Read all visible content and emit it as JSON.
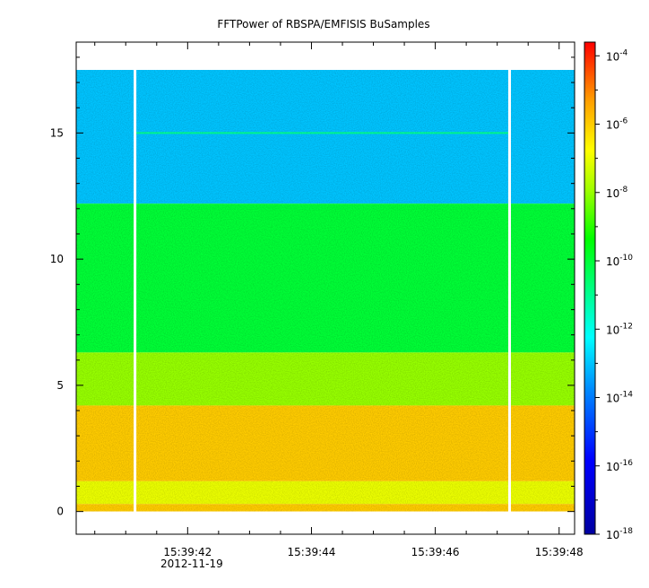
{
  "chart_data": {
    "type": "heatmap",
    "title": "FFTPower of RBSPA/EMFISIS  BuSamples",
    "xlabel": "",
    "ylabel": "",
    "x_tick_labels": [
      "15:39:42",
      "15:39:44",
      "15:39:46",
      "15:39:48"
    ],
    "x_date_label": "2012-11-19",
    "x_ticks_seconds": [
      42,
      44,
      46,
      48
    ],
    "xlim_seconds": [
      40.2,
      48.25
    ],
    "y_ticks": [
      0,
      5,
      10,
      15
    ],
    "y_tick_labels": [
      "0",
      "5",
      "10",
      "15"
    ],
    "ylim": [
      -0.9,
      18.6
    ],
    "data_extent_y": [
      0,
      17.5
    ],
    "data_gaps_seconds": [
      41.15,
      47.2
    ],
    "colorbar": {
      "scale": "log",
      "base": "10",
      "range_exponent": [
        -18,
        -3.6
      ],
      "tick_exponents": [
        "-4",
        "-6",
        "-8",
        "-10",
        "-12",
        "-14",
        "-16",
        "-18"
      ]
    },
    "bands": [
      {
        "y_min": 12.2,
        "y_max": 17.5,
        "level": "1e-13"
      },
      {
        "y_min": 6.3,
        "y_max": 12.2,
        "level": "1e-10.5"
      },
      {
        "y_min": 4.2,
        "y_max": 6.3,
        "level": "1e-8"
      },
      {
        "y_min": 1.2,
        "y_max": 4.2,
        "level": "1e-6"
      },
      {
        "y_min": 0.3,
        "y_max": 1.2,
        "level": "1e-7.5"
      },
      {
        "y_min": 0.0,
        "y_max": 0.3,
        "level": "1e-6.5"
      }
    ],
    "horizontal_line": {
      "y": 15.0,
      "level": "1e-11"
    },
    "grid": false
  }
}
